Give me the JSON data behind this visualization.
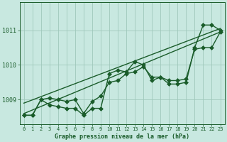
{
  "title": "Graphe pression niveau de la mer (hPa)",
  "bg_color": "#c8e8e0",
  "grid_color": "#a0c8bc",
  "line_color": "#1a5c2a",
  "xlim": [
    -0.5,
    23.5
  ],
  "ylim": [
    1008.3,
    1011.8
  ],
  "yticks": [
    1009,
    1010,
    1011
  ],
  "xticks": [
    0,
    1,
    2,
    3,
    4,
    5,
    6,
    7,
    8,
    9,
    10,
    11,
    12,
    13,
    14,
    15,
    16,
    17,
    18,
    19,
    20,
    21,
    22,
    23
  ],
  "series": [
    {
      "x": [
        0,
        1,
        2,
        3,
        4,
        5,
        6,
        7,
        8,
        9,
        10,
        11,
        12,
        13,
        14,
        15,
        16,
        17,
        18,
        19,
        20,
        21,
        22,
        23
      ],
      "y": [
        1008.55,
        1008.55,
        1009.0,
        1008.85,
        1008.8,
        1008.75,
        1008.75,
        1008.55,
        1008.75,
        1008.75,
        1009.75,
        1009.85,
        1009.8,
        1010.1,
        1010.0,
        1009.55,
        1009.65,
        1009.45,
        1009.45,
        1009.5,
        1010.5,
        1011.15,
        1011.15,
        1011.0
      ],
      "marker": "D",
      "lw": 1.0
    },
    {
      "x": [
        0,
        1,
        2,
        3,
        4,
        5,
        6,
        7,
        8,
        9,
        10,
        11,
        12,
        13,
        14,
        15,
        16,
        17,
        18,
        19,
        20,
        21,
        22,
        23
      ],
      "y": [
        1008.55,
        1008.55,
        1009.0,
        1009.05,
        1009.0,
        1008.95,
        1009.0,
        1008.6,
        1008.95,
        1009.1,
        1009.5,
        1009.55,
        1009.75,
        1009.8,
        1009.95,
        1009.65,
        1009.65,
        1009.55,
        1009.55,
        1009.6,
        1010.45,
        1010.5,
        1010.5,
        1010.95
      ],
      "marker": "D",
      "lw": 1.0
    },
    {
      "x": [
        0,
        23
      ],
      "y": [
        1008.9,
        1011.05
      ],
      "marker": null,
      "lw": 1.0
    },
    {
      "x": [
        0,
        23
      ],
      "y": [
        1008.6,
        1010.95
      ],
      "marker": null,
      "lw": 1.0
    }
  ],
  "marker_size": 3.0
}
